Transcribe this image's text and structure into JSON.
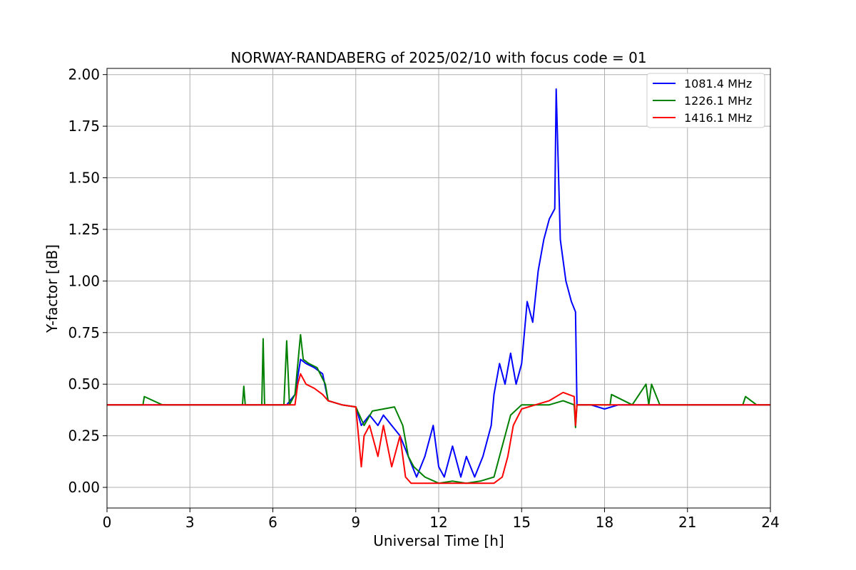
{
  "chart_data": {
    "type": "line",
    "title": "NORWAY-RANDABERG of 2025/02/10 with focus code = 01",
    "xlabel": "Universal Time [h]",
    "ylabel": "Y-factor [dB]",
    "xlim": [
      0,
      24
    ],
    "ylim": [
      -0.1,
      2.03
    ],
    "xticks": [
      0,
      3,
      6,
      9,
      12,
      15,
      18,
      21,
      24
    ],
    "xtick_labels": [
      "0",
      "3",
      "6",
      "9",
      "12",
      "15",
      "18",
      "21",
      "24"
    ],
    "yticks": [
      0.0,
      0.25,
      0.5,
      0.75,
      1.0,
      1.25,
      1.5,
      1.75,
      2.0
    ],
    "ytick_labels": [
      "0.00",
      "0.25",
      "0.50",
      "0.75",
      "1.00",
      "1.25",
      "1.50",
      "1.75",
      "2.00"
    ],
    "grid": true,
    "legend_position": "top-right",
    "series": [
      {
        "name": "1081.4 MHz",
        "color": "#0000ff",
        "x": [
          0,
          0.5,
          1,
          2,
          3,
          4,
          5,
          6,
          6.5,
          6.8,
          7.0,
          7.2,
          7.5,
          7.8,
          8.0,
          8.5,
          9.0,
          9.2,
          9.5,
          9.8,
          10.0,
          10.3,
          10.6,
          10.9,
          11.2,
          11.5,
          11.8,
          12.0,
          12.2,
          12.5,
          12.8,
          13.0,
          13.3,
          13.6,
          13.9,
          14.0,
          14.2,
          14.4,
          14.6,
          14.8,
          15.0,
          15.2,
          15.4,
          15.6,
          15.8,
          16.0,
          16.2,
          16.25,
          16.4,
          16.6,
          16.8,
          16.95,
          17.0,
          17.5,
          18.0,
          18.5,
          19,
          20,
          21,
          22,
          23,
          24
        ],
        "y": [
          0.4,
          0.4,
          0.4,
          0.4,
          0.4,
          0.4,
          0.4,
          0.4,
          0.4,
          0.45,
          0.62,
          0.6,
          0.58,
          0.55,
          0.42,
          0.4,
          0.39,
          0.3,
          0.35,
          0.3,
          0.35,
          0.3,
          0.25,
          0.15,
          0.05,
          0.15,
          0.3,
          0.1,
          0.05,
          0.2,
          0.05,
          0.15,
          0.05,
          0.15,
          0.3,
          0.45,
          0.6,
          0.5,
          0.65,
          0.5,
          0.6,
          0.9,
          0.8,
          1.05,
          1.2,
          1.3,
          1.35,
          1.93,
          1.2,
          1.0,
          0.9,
          0.85,
          0.4,
          0.4,
          0.38,
          0.4,
          0.4,
          0.4,
          0.4,
          0.4,
          0.4,
          0.4
        ]
      },
      {
        "name": "1226.1 MHz",
        "color": "#008000",
        "x": [
          0,
          1.3,
          1.35,
          2,
          3,
          4,
          4.9,
          4.95,
          5.0,
          5.6,
          5.65,
          5.7,
          6,
          6.4,
          6.5,
          6.6,
          6.8,
          7.0,
          7.1,
          7.3,
          7.6,
          7.9,
          8.0,
          8.5,
          9.0,
          9.3,
          9.6,
          10.0,
          10.4,
          10.7,
          10.9,
          11.1,
          11.5,
          12.0,
          12.5,
          13.0,
          13.5,
          14.0,
          14.3,
          14.6,
          15.0,
          15.5,
          16.0,
          16.5,
          16.9,
          16.95,
          17.0,
          17.5,
          18.2,
          18.25,
          19.0,
          19.5,
          19.6,
          19.7,
          20,
          21,
          22,
          23.0,
          23.1,
          23.5,
          24
        ],
        "y": [
          0.4,
          0.4,
          0.44,
          0.4,
          0.4,
          0.4,
          0.4,
          0.49,
          0.4,
          0.4,
          0.72,
          0.4,
          0.4,
          0.4,
          0.71,
          0.4,
          0.45,
          0.74,
          0.62,
          0.6,
          0.58,
          0.5,
          0.42,
          0.4,
          0.39,
          0.3,
          0.37,
          0.38,
          0.39,
          0.3,
          0.15,
          0.1,
          0.05,
          0.02,
          0.03,
          0.02,
          0.03,
          0.05,
          0.2,
          0.35,
          0.4,
          0.4,
          0.4,
          0.42,
          0.4,
          0.29,
          0.4,
          0.4,
          0.4,
          0.45,
          0.4,
          0.5,
          0.4,
          0.5,
          0.4,
          0.4,
          0.4,
          0.4,
          0.44,
          0.4,
          0.4
        ]
      },
      {
        "name": "1416.1 MHz",
        "color": "#ff0000",
        "x": [
          0,
          1,
          2,
          3,
          4,
          5,
          6,
          6.5,
          6.8,
          6.9,
          7.0,
          7.2,
          7.5,
          7.8,
          8.0,
          8.5,
          9.0,
          9.2,
          9.3,
          9.5,
          9.8,
          10.0,
          10.3,
          10.6,
          10.8,
          11.0,
          11.5,
          12.0,
          12.5,
          13.0,
          13.5,
          14.0,
          14.3,
          14.5,
          14.7,
          15.0,
          15.5,
          16.0,
          16.5,
          16.9,
          16.95,
          17.0,
          17.5,
          18,
          19,
          20,
          21,
          22,
          23,
          24
        ],
        "y": [
          0.4,
          0.4,
          0.4,
          0.4,
          0.4,
          0.4,
          0.4,
          0.4,
          0.4,
          0.5,
          0.55,
          0.5,
          0.48,
          0.45,
          0.42,
          0.4,
          0.39,
          0.1,
          0.25,
          0.3,
          0.15,
          0.3,
          0.1,
          0.25,
          0.05,
          0.02,
          0.02,
          0.02,
          0.02,
          0.02,
          0.02,
          0.02,
          0.05,
          0.15,
          0.3,
          0.38,
          0.4,
          0.42,
          0.46,
          0.44,
          0.3,
          0.4,
          0.4,
          0.4,
          0.4,
          0.4,
          0.4,
          0.4,
          0.4,
          0.4
        ]
      }
    ]
  }
}
